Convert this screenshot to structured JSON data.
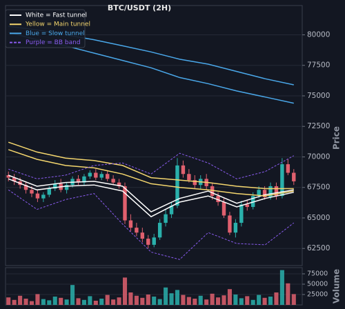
{
  "chart_data": [
    {
      "type": "candlestick",
      "title": "BTC/USDT (2H)",
      "ylabel": "Price",
      "ylim": [
        61100,
        82400
      ],
      "yticks": [
        62500,
        65000,
        67500,
        70000,
        72500,
        75000,
        77500,
        80000
      ],
      "grid": true,
      "colors": {
        "up": "#2ab0ab",
        "down": "#e0606e"
      },
      "legend": "upper left",
      "open": [
        68500,
        68300,
        68000,
        67700,
        67300,
        67000,
        66600,
        66900,
        67400,
        67800,
        67300,
        67700,
        68200,
        67900,
        68400,
        68700,
        68300,
        68600,
        68200,
        67900,
        67600,
        64800,
        64200,
        63800,
        63300,
        62800,
        63400,
        64600,
        65300,
        66000,
        69300,
        68600,
        68100,
        67700,
        68200,
        67600,
        66800,
        66300,
        65200,
        63800,
        64600,
        66100,
        65900,
        66800,
        67300,
        66700,
        67600,
        66800,
        69400,
        68700
      ],
      "high": [
        68800,
        68600,
        68300,
        68000,
        67600,
        67300,
        67100,
        67600,
        68100,
        68200,
        67900,
        68400,
        68500,
        68600,
        68900,
        69000,
        68800,
        68900,
        68500,
        68200,
        67900,
        65300,
        64600,
        64200,
        63600,
        63700,
        64900,
        65700,
        66300,
        69900,
        69700,
        69000,
        68500,
        68500,
        68600,
        67900,
        67100,
        66600,
        65500,
        64900,
        66400,
        66500,
        67100,
        67600,
        67600,
        67900,
        67900,
        69900,
        69800,
        69000
      ],
      "low": [
        68000,
        67700,
        67400,
        67000,
        66700,
        66300,
        66300,
        66700,
        67200,
        67100,
        67000,
        67500,
        67700,
        67700,
        68200,
        68100,
        68100,
        68000,
        67700,
        67400,
        64500,
        63900,
        63500,
        63000,
        62500,
        62600,
        63200,
        64300,
        65000,
        65800,
        68300,
        67900,
        67400,
        67400,
        67300,
        66500,
        66000,
        65000,
        63600,
        63400,
        64300,
        65600,
        65700,
        66600,
        66500,
        66500,
        66500,
        66600,
        68500,
        67700
      ],
      "close": [
        68300,
        68000,
        67700,
        67300,
        67000,
        66600,
        66900,
        67400,
        67800,
        67300,
        67700,
        68200,
        67900,
        68400,
        68700,
        68300,
        68600,
        68200,
        67900,
        67600,
        64800,
        64200,
        63800,
        63300,
        62800,
        63400,
        64600,
        65300,
        66000,
        69300,
        68600,
        68100,
        67700,
        68200,
        67600,
        66800,
        66300,
        65200,
        63800,
        64600,
        66100,
        65900,
        66800,
        67300,
        66700,
        67600,
        66800,
        69400,
        68700,
        68000
      ],
      "lines": [
        {
          "name": "White = Fast tunnel",
          "color": "#ffffff",
          "upper": [
            68500,
            67600,
            67900,
            68000,
            67600,
            65500,
            66600,
            67200,
            66200,
            66900,
            67300
          ],
          "lower": [
            68200,
            67300,
            67600,
            67700,
            67200,
            65100,
            66300,
            66800,
            65900,
            66600,
            67100
          ]
        },
        {
          "name": "Yellow = Main tunnel",
          "color": "#f5d76e",
          "upper": [
            71200,
            70400,
            69900,
            69700,
            69300,
            68300,
            68100,
            67900,
            67600,
            67400,
            67400
          ],
          "lower": [
            70600,
            69800,
            69300,
            69100,
            68600,
            67800,
            67500,
            67300,
            67000,
            66800,
            67200
          ]
        },
        {
          "name": "Blue = Slow tunnel",
          "color": "#4aa8ea",
          "upper": [
            80700,
            80400,
            80000,
            79600,
            79100,
            78600,
            78000,
            77600,
            77000,
            76400,
            75900
          ],
          "lower": [
            80200,
            79600,
            79100,
            78500,
            77900,
            77300,
            76500,
            76000,
            75400,
            74900,
            74400
          ]
        },
        {
          "name": "Purple = BB band",
          "color": "#8a5cf0",
          "dashed": true,
          "upper": [
            69000,
            68200,
            68500,
            69300,
            69500,
            68600,
            70300,
            69500,
            68200,
            68800,
            70100
          ],
          "lower": [
            67300,
            65700,
            66500,
            67000,
            64500,
            62200,
            61600,
            63800,
            62900,
            62800,
            64600
          ]
        }
      ]
    },
    {
      "type": "bar",
      "ylabel": "Volume",
      "ylim": [
        0,
        90000
      ],
      "yticks": [
        25000,
        50000,
        75000
      ],
      "values": [
        18000,
        12000,
        22000,
        15000,
        9000,
        26000,
        14000,
        11000,
        20000,
        17000,
        13000,
        48000,
        16000,
        12000,
        21000,
        10000,
        15000,
        24000,
        13000,
        18000,
        66000,
        30000,
        22000,
        17000,
        25000,
        20000,
        14000,
        42000,
        28000,
        36000,
        24000,
        19000,
        15000,
        22000,
        13000,
        27000,
        18000,
        23000,
        38000,
        25000,
        16000,
        21000,
        12000,
        24000,
        17000,
        20000,
        30000,
        84000,
        52000,
        26000
      ]
    }
  ]
}
